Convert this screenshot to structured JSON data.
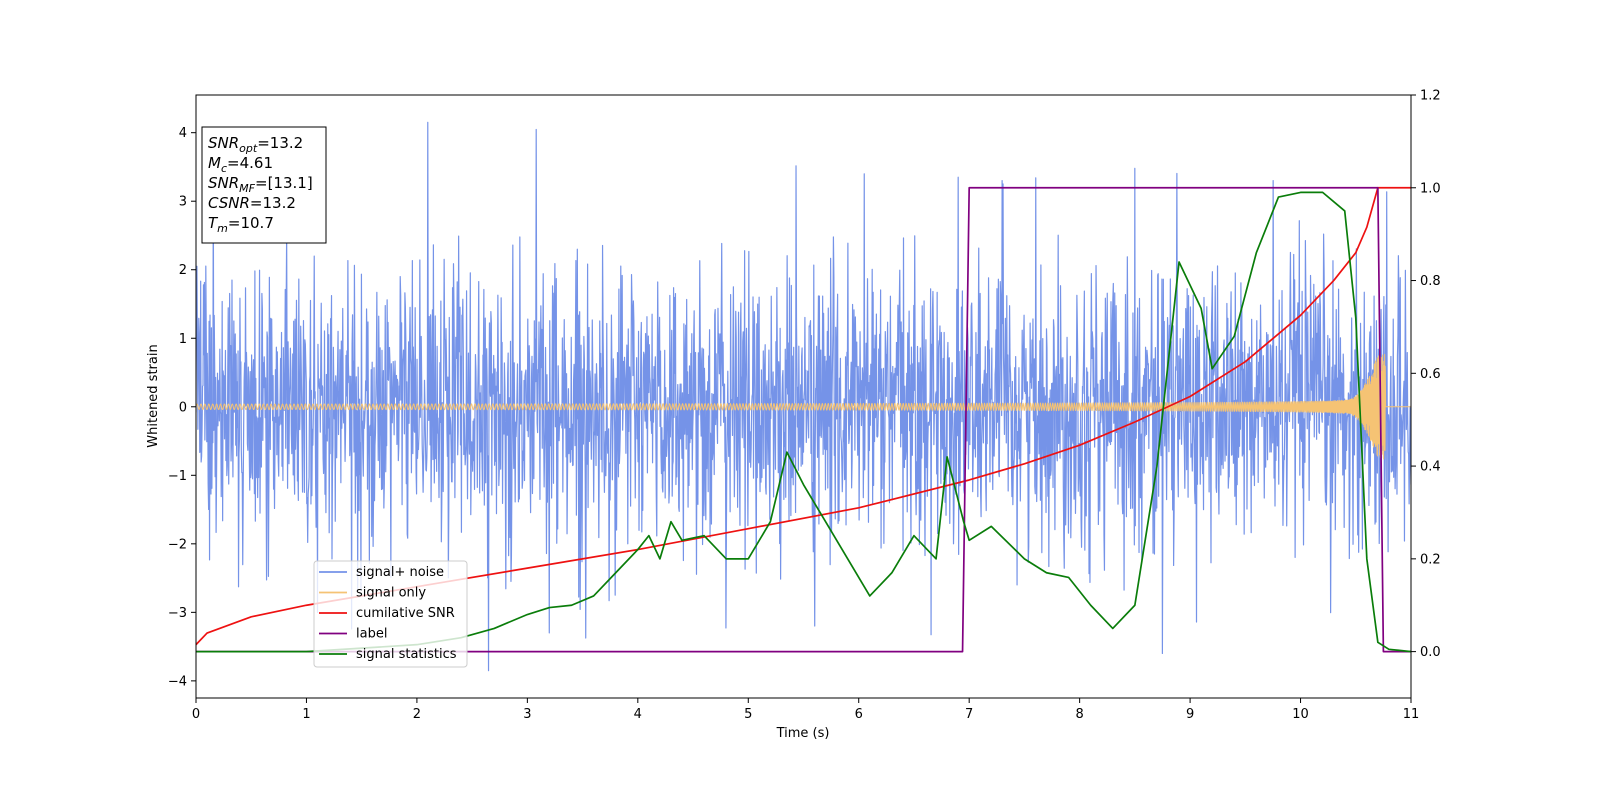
{
  "chart_data": {
    "type": "line",
    "title": "",
    "xlabel": "Time (s)",
    "ylabel": "Whitened strain",
    "xlim": [
      0,
      11
    ],
    "ylim": [
      -4.25,
      4.55
    ],
    "y2lim": [
      -0.1,
      1.2
    ],
    "xticks": [
      0,
      1,
      2,
      3,
      4,
      5,
      6,
      7,
      8,
      9,
      10,
      11
    ],
    "yticks": [
      -4,
      -3,
      -2,
      -1,
      0,
      1,
      2,
      3,
      4
    ],
    "y2ticks": [
      "0.0",
      "0.2",
      "0.4",
      "0.6",
      "0.8",
      "1.0",
      "1.2"
    ],
    "grid": false,
    "legend_placement": "lower-left",
    "annotation": [
      {
        "sym": "SNR",
        "sub": "opt",
        "val": "=13.2"
      },
      {
        "sym": "M",
        "sub": "c",
        "val": "=4.61"
      },
      {
        "sym": "SNR",
        "sub": "MF",
        "val": "=[13.1]"
      },
      {
        "sym": "CSNR",
        "sub": "",
        "val": "=13.2"
      },
      {
        "sym": "T",
        "sub": "m",
        "val": "=10.7"
      }
    ],
    "series": [
      {
        "name": "signal+ noise",
        "axis": "left",
        "color": "#7593e8",
        "kind": "noise",
        "noise_sigma": 1.0,
        "spikes": [
          [
            2.1,
            4.15
          ],
          [
            2.65,
            -3.85
          ],
          [
            8.5,
            3.48
          ],
          [
            9.75,
            3.3
          ],
          [
            6.05,
            3.4
          ],
          [
            7.3,
            3.3
          ],
          [
            6.9,
            3.35
          ],
          [
            8.75,
            -3.6
          ],
          [
            3.2,
            -3.3
          ],
          [
            1.1,
            -3.0
          ],
          [
            5.6,
            -3.2
          ]
        ]
      },
      {
        "name": "signal only",
        "axis": "left",
        "color": "#f5c374",
        "kind": "chirp",
        "t_merge": 10.72,
        "amp_start": 0.04,
        "amp_peak": 0.85
      },
      {
        "name": "cumilative SNR",
        "axis": "right",
        "color": "#ee1111",
        "x": [
          0.0,
          0.1,
          0.5,
          1.0,
          2.0,
          3.0,
          4.0,
          5.0,
          6.0,
          7.0,
          7.5,
          8.0,
          8.5,
          9.0,
          9.5,
          10.0,
          10.3,
          10.5,
          10.6,
          10.7,
          11.0
        ],
        "y": [
          0.015,
          0.04,
          0.075,
          0.1,
          0.14,
          0.18,
          0.22,
          0.265,
          0.31,
          0.37,
          0.405,
          0.445,
          0.495,
          0.55,
          0.625,
          0.725,
          0.8,
          0.86,
          0.915,
          1.0,
          1.0
        ]
      },
      {
        "name": "label",
        "axis": "right",
        "color": "#800080",
        "x": [
          0.0,
          6.94,
          7.0,
          10.7,
          10.75,
          11.0
        ],
        "y": [
          0.0,
          0.0,
          1.0,
          1.0,
          0.0,
          0.0
        ]
      },
      {
        "name": "signal statistics",
        "axis": "right",
        "color": "#0a7d0a",
        "x": [
          0.0,
          1.0,
          2.0,
          2.4,
          2.7,
          3.0,
          3.2,
          3.4,
          3.6,
          3.8,
          4.0,
          4.1,
          4.2,
          4.3,
          4.4,
          4.6,
          4.8,
          5.0,
          5.2,
          5.35,
          5.5,
          5.7,
          5.9,
          6.1,
          6.3,
          6.5,
          6.7,
          6.8,
          6.95,
          7.0,
          7.2,
          7.5,
          7.7,
          7.9,
          8.1,
          8.3,
          8.5,
          8.7,
          8.9,
          9.1,
          9.2,
          9.4,
          9.6,
          9.7,
          9.8,
          10.0,
          10.2,
          10.4,
          10.5,
          10.6,
          10.7,
          10.8,
          11.0
        ],
        "y": [
          0.0,
          0.0,
          0.015,
          0.03,
          0.05,
          0.08,
          0.095,
          0.1,
          0.12,
          0.17,
          0.22,
          0.25,
          0.2,
          0.28,
          0.24,
          0.25,
          0.2,
          0.2,
          0.28,
          0.43,
          0.36,
          0.28,
          0.2,
          0.12,
          0.17,
          0.25,
          0.2,
          0.42,
          0.28,
          0.24,
          0.27,
          0.2,
          0.17,
          0.16,
          0.1,
          0.05,
          0.1,
          0.4,
          0.84,
          0.74,
          0.61,
          0.68,
          0.86,
          0.92,
          0.98,
          0.99,
          0.99,
          0.95,
          0.72,
          0.2,
          0.02,
          0.005,
          0.0
        ]
      }
    ]
  }
}
